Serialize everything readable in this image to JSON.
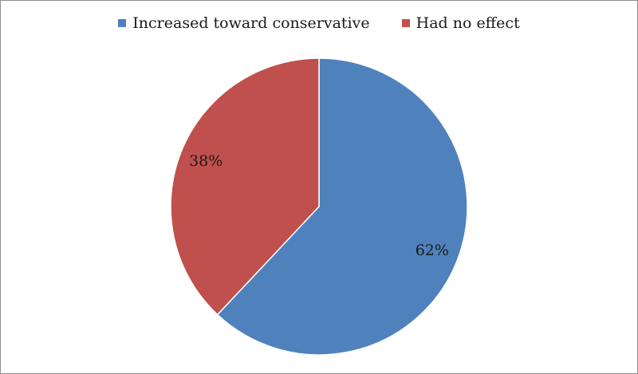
{
  "chart_data": {
    "type": "pie",
    "labels": [
      "Increased toward conservative",
      "Had no effect"
    ],
    "values": [
      62,
      38
    ],
    "data_labels": [
      "62%",
      "38%"
    ],
    "colors": [
      "#4f81bd",
      "#c0504d"
    ],
    "legend_position": "top",
    "start_angle_deg": 0,
    "direction": "clockwise"
  }
}
